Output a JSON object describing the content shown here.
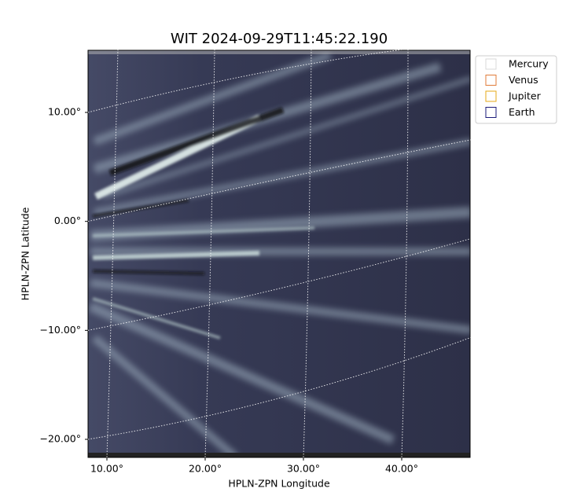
{
  "chart_data": {
    "type": "image",
    "title": "WIT 2024-09-29T11:45:22.190",
    "xlabel": "HPLN-ZPN Longitude",
    "ylabel": "HPLN-ZPN Latitude",
    "xlim": [
      8.08,
      46.96
    ],
    "ylim": [
      -21.66,
      15.7
    ],
    "xticks": [
      {
        "value": 10,
        "label": "10.00°"
      },
      {
        "value": 20,
        "label": "20.00°"
      },
      {
        "value": 30,
        "label": "30.00°"
      },
      {
        "value": 40,
        "label": "40.00°"
      }
    ],
    "yticks": [
      {
        "value": -20,
        "label": "−20.00°"
      },
      {
        "value": -10,
        "label": "−10.00°"
      },
      {
        "value": 0,
        "label": "0.00°"
      },
      {
        "value": 10,
        "label": "10.00°"
      }
    ],
    "grid": true,
    "legend_position": "outside-upper-right",
    "series": [
      {
        "name": "Mercury",
        "color": "#d9d9d9"
      },
      {
        "name": "Venus",
        "color": "#e07b39"
      },
      {
        "name": "Jupiter",
        "color": "#e6a817"
      },
      {
        "name": "Earth",
        "color": "#1a1a7a"
      }
    ]
  }
}
